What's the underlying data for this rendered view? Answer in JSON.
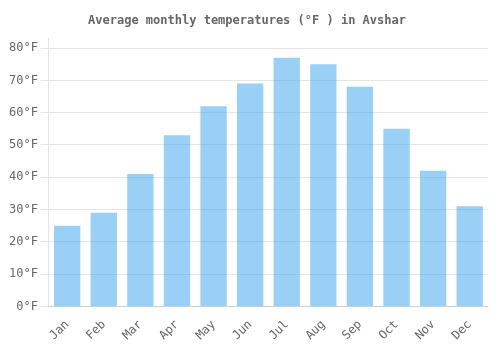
{
  "chart_data": {
    "type": "bar",
    "title": "Average monthly temperatures (°F ) in Avshar",
    "categories": [
      "Jan",
      "Feb",
      "Mar",
      "Apr",
      "May",
      "Jun",
      "Jul",
      "Aug",
      "Sep",
      "Oct",
      "Nov",
      "Dec"
    ],
    "values": [
      25,
      29,
      41,
      53,
      62,
      69,
      77,
      75,
      68,
      55,
      42,
      31
    ],
    "ylim": [
      0,
      83
    ],
    "yticks": [
      {
        "value": 0,
        "label": "0°F"
      },
      {
        "value": 10,
        "label": "10°F"
      },
      {
        "value": 20,
        "label": "20°F"
      },
      {
        "value": 30,
        "label": "30°F"
      },
      {
        "value": 40,
        "label": "40°F"
      },
      {
        "value": 50,
        "label": "50°F"
      },
      {
        "value": 60,
        "label": "60°F"
      },
      {
        "value": 70,
        "label": "70°F"
      },
      {
        "value": 80,
        "label": "80°F"
      }
    ],
    "grid": true
  }
}
